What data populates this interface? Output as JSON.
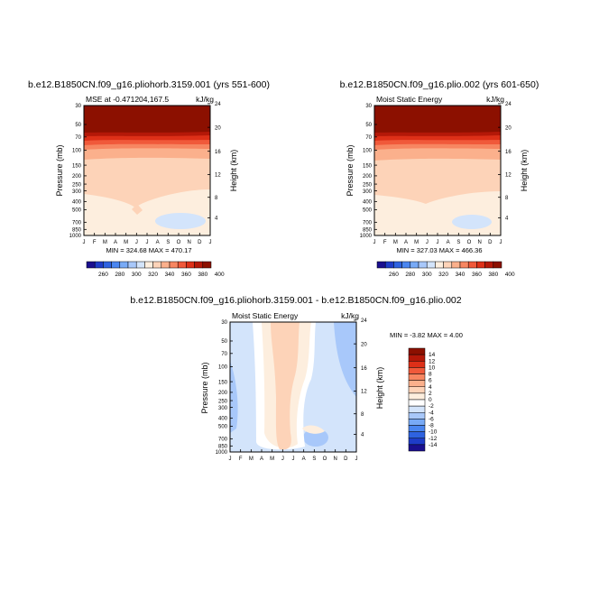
{
  "chart_data": [
    {
      "type": "heatmap",
      "title": "b.e12.B1850CN.f09_g16.pliohorb.3159.001 (yrs 551-600)",
      "subtitle_left": "MSE at -0.471204,167.5",
      "units": "kJ/kg",
      "ylabel": "Pressure (mb)",
      "ylabel_right": "Height (km)",
      "stats": "MIN = 324.68  MAX = 470.17",
      "x_ticks": [
        "J",
        "F",
        "M",
        "A",
        "M",
        "J",
        "J",
        "A",
        "S",
        "O",
        "N",
        "D",
        "J"
      ],
      "y_ticks": [
        "30",
        "50",
        "70",
        "100",
        "150",
        "200",
        "250",
        "300",
        "400",
        "500",
        "700",
        "850",
        "1000"
      ],
      "y_ticks_right": [
        "24",
        "20",
        "16",
        "12",
        "8",
        "4"
      ],
      "colorbar_labels": [
        "260",
        "280",
        "300",
        "320",
        "340",
        "360",
        "380",
        "400"
      ],
      "colorbar_type": "horizontal"
    },
    {
      "type": "heatmap",
      "title": "b.e12.B1850CN.f09_g16.plio.002 (yrs 601-650)",
      "subtitle_left": "Moist Static Energy",
      "units": "kJ/kg",
      "ylabel": "Pressure (mb)",
      "ylabel_right": "Height (km)",
      "stats": "MIN = 327.03  MAX = 466.36",
      "x_ticks": [
        "J",
        "F",
        "M",
        "A",
        "M",
        "J",
        "J",
        "A",
        "S",
        "O",
        "N",
        "D",
        "J"
      ],
      "y_ticks": [
        "30",
        "50",
        "70",
        "100",
        "150",
        "200",
        "250",
        "300",
        "400",
        "500",
        "700",
        "850",
        "1000"
      ],
      "y_ticks_right": [
        "24",
        "20",
        "16",
        "12",
        "8",
        "4"
      ],
      "colorbar_labels": [
        "260",
        "280",
        "300",
        "320",
        "340",
        "360",
        "380",
        "400"
      ],
      "colorbar_type": "horizontal"
    },
    {
      "type": "heatmap",
      "title": "b.e12.B1850CN.f09_g16.pliohorb.3159.001 - b.e12.B1850CN.f09_g16.plio.002",
      "subtitle_left": "Moist Static Energy",
      "units": "kJ/kg",
      "ylabel": "Pressure (mb)",
      "ylabel_right": "Height (km)",
      "stats": "MIN = -3.82  MAX = 4.00",
      "x_ticks": [
        "J",
        "F",
        "M",
        "A",
        "M",
        "J",
        "J",
        "A",
        "S",
        "O",
        "N",
        "D",
        "J"
      ],
      "y_ticks": [
        "30",
        "50",
        "70",
        "100",
        "150",
        "200",
        "250",
        "300",
        "400",
        "500",
        "700",
        "850",
        "1000"
      ],
      "y_ticks_right": [
        "24",
        "20",
        "16",
        "12",
        "8",
        "4"
      ],
      "colorbar_labels": [
        "14",
        "12",
        "10",
        "8",
        "6",
        "4",
        "2",
        "0",
        "-2",
        "-4",
        "-6",
        "-8",
        "-10",
        "-12",
        "-14"
      ],
      "colorbar_type": "vertical"
    }
  ],
  "colors": {
    "abs_bands": [
      "#1a0f8f",
      "#1e3cc8",
      "#2e62e0",
      "#4a86f0",
      "#78aaf6",
      "#a8c8fa",
      "#d3e4fb",
      "#fdeede",
      "#fdd3b8",
      "#fbb08c",
      "#f78661",
      "#f0593a",
      "#dd3018",
      "#b41808",
      "#8c1000"
    ],
    "diff_bands": [
      "#1a0f8f",
      "#1e3cc8",
      "#2e62e0",
      "#4a86f0",
      "#78aaf6",
      "#a8c8fa",
      "#d3e4fb",
      "#ffffff",
      "#fdeede",
      "#fdd3b8",
      "#fbb08c",
      "#f78661",
      "#f0593a",
      "#dd3018",
      "#b41808",
      "#8c1000"
    ]
  }
}
